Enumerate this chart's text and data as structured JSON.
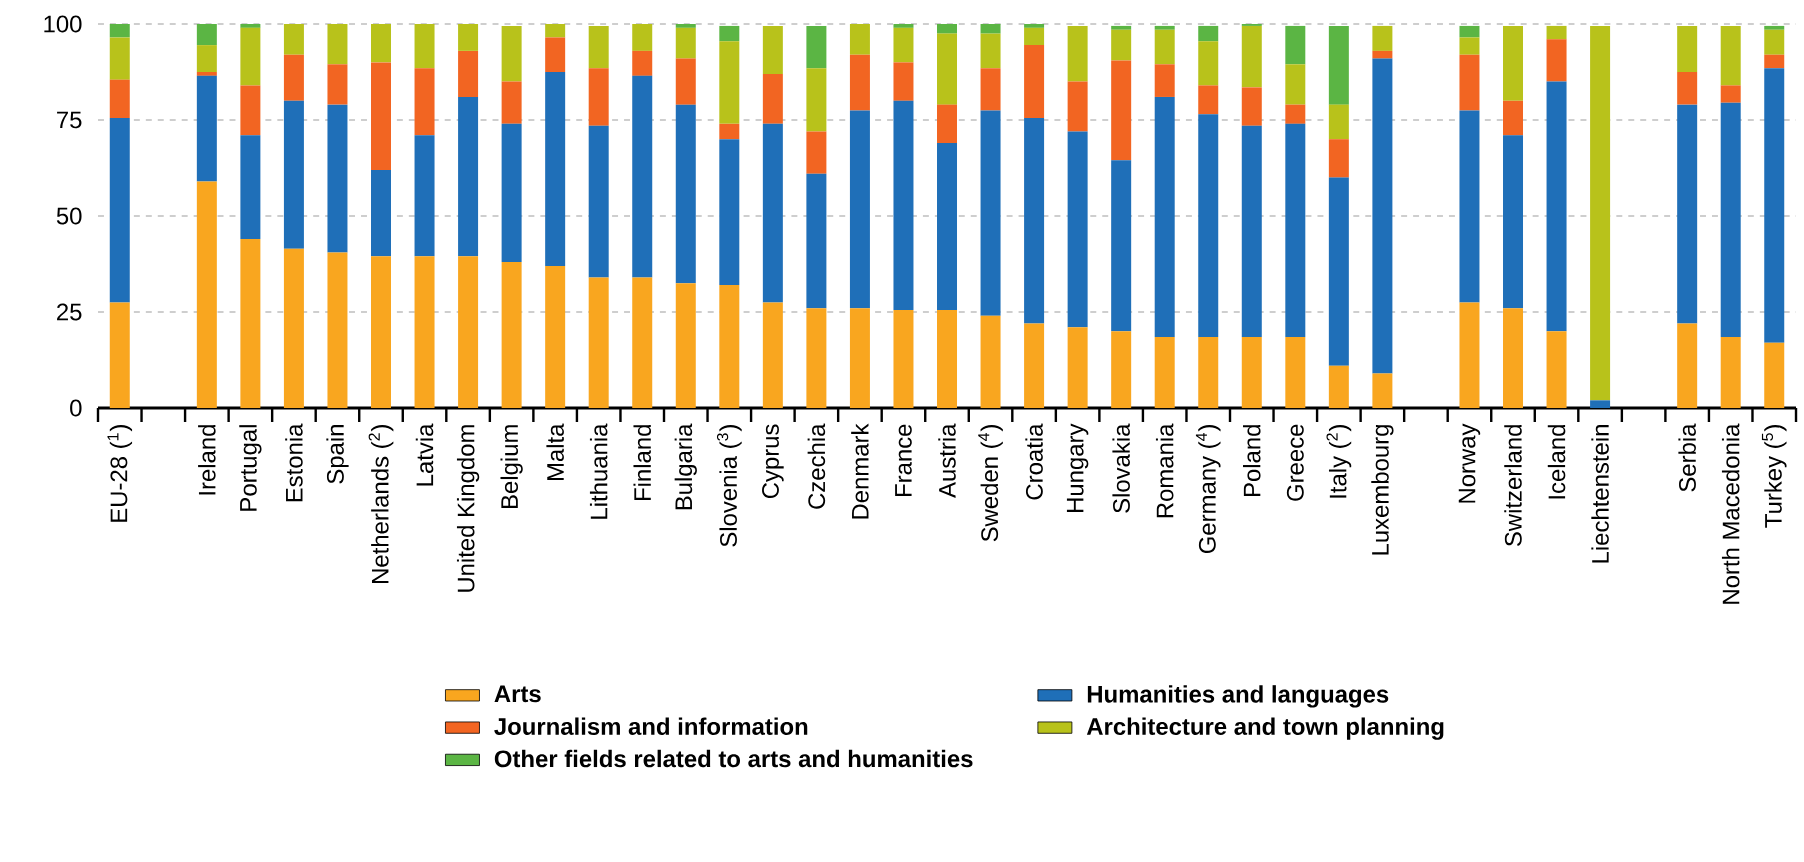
{
  "chart_data": {
    "type": "bar",
    "stacked": true,
    "categories": [
      "EU-28 ($^{1}$)",
      null,
      "Ireland",
      "Portugal",
      "Estonia",
      "Spain",
      "Netherlands ($^{2}$)",
      "Latvia",
      "United Kingdom",
      "Belgium",
      "Malta",
      "Lithuania",
      "Finland",
      "Bulgaria",
      "Slovenia ($^{3}$)",
      "Cyprus",
      "Czechia",
      "Denmark",
      "France",
      "Austria",
      "Sweden ($^{4}$)",
      "Croatia",
      "Hungary",
      "Slovakia",
      "Romania",
      "Germany ($^{4}$)",
      "Poland",
      "Greece",
      "Italy ($^{2}$)",
      "Luxembourg",
      null,
      "Norway",
      "Switzerland",
      "Iceland",
      "Liechtenstein",
      null,
      "Serbia",
      "North Macedonia",
      "Turkey ($^{5}$)"
    ],
    "series": [
      {
        "name": "Arts",
        "color": "#f9a61f",
        "values": [
          27.5,
          null,
          59,
          44,
          41.5,
          40.5,
          39.5,
          39.5,
          39.5,
          38,
          37,
          34,
          34,
          32.5,
          32,
          27.5,
          26,
          26,
          25.5,
          25.5,
          24,
          22,
          21,
          20,
          18.5,
          18.5,
          18.5,
          18.5,
          11,
          9,
          null,
          27.5,
          26,
          20,
          0,
          null,
          22,
          18.5,
          17
        ]
      },
      {
        "name": "Humanities and languages",
        "color": "#1f6fb8",
        "values": [
          48,
          null,
          27.5,
          27,
          38.5,
          38.5,
          22.5,
          31.5,
          41.5,
          36,
          50.5,
          39.5,
          52.5,
          46.5,
          38,
          46.5,
          35,
          51.5,
          54.5,
          43.5,
          53.5,
          53.5,
          51,
          44.5,
          62.5,
          58,
          55,
          55.5,
          49,
          82,
          null,
          50,
          45,
          65,
          2,
          null,
          57,
          61,
          71.5
        ]
      },
      {
        "name": "Journalism and information",
        "color": "#f26522",
        "values": [
          10,
          null,
          1,
          13,
          12,
          10.5,
          28,
          17.5,
          12,
          11,
          9,
          15,
          6.5,
          12,
          4,
          13,
          11,
          14.5,
          10,
          10,
          11,
          19,
          13,
          26,
          8.5,
          7.5,
          10,
          5,
          10,
          2,
          null,
          14.5,
          9,
          11,
          0,
          null,
          8.5,
          4.5,
          3.5
        ]
      },
      {
        "name": "Architecture and town planning",
        "color": "#b8c21b",
        "values": [
          11,
          null,
          7,
          15,
          8,
          10.5,
          10,
          11.5,
          7,
          14.5,
          3.5,
          11,
          7,
          8,
          21.5,
          12.5,
          16.5,
          8,
          9,
          18.5,
          9,
          4.5,
          14.5,
          8,
          9,
          11.5,
          16,
          10.5,
          9,
          6.5,
          null,
          4.5,
          19.5,
          3.5,
          97.5,
          null,
          12,
          15.5,
          6.5
        ]
      },
      {
        "name": "Other fields related to arts and humanities",
        "color": "#5bb544",
        "values": [
          3.5,
          null,
          5.5,
          1,
          0,
          0,
          0,
          0,
          0,
          0,
          0,
          0,
          0,
          1,
          4,
          0,
          11,
          0,
          1,
          2.5,
          2.5,
          1,
          0,
          1,
          1,
          4,
          0.5,
          10,
          20.5,
          0,
          null,
          3,
          0,
          0,
          0,
          null,
          0,
          0,
          1
        ]
      }
    ],
    "ylim": [
      0,
      100
    ],
    "yticks": [
      0,
      25,
      50,
      75,
      100
    ],
    "grid": "y",
    "legend": "bottom"
  }
}
